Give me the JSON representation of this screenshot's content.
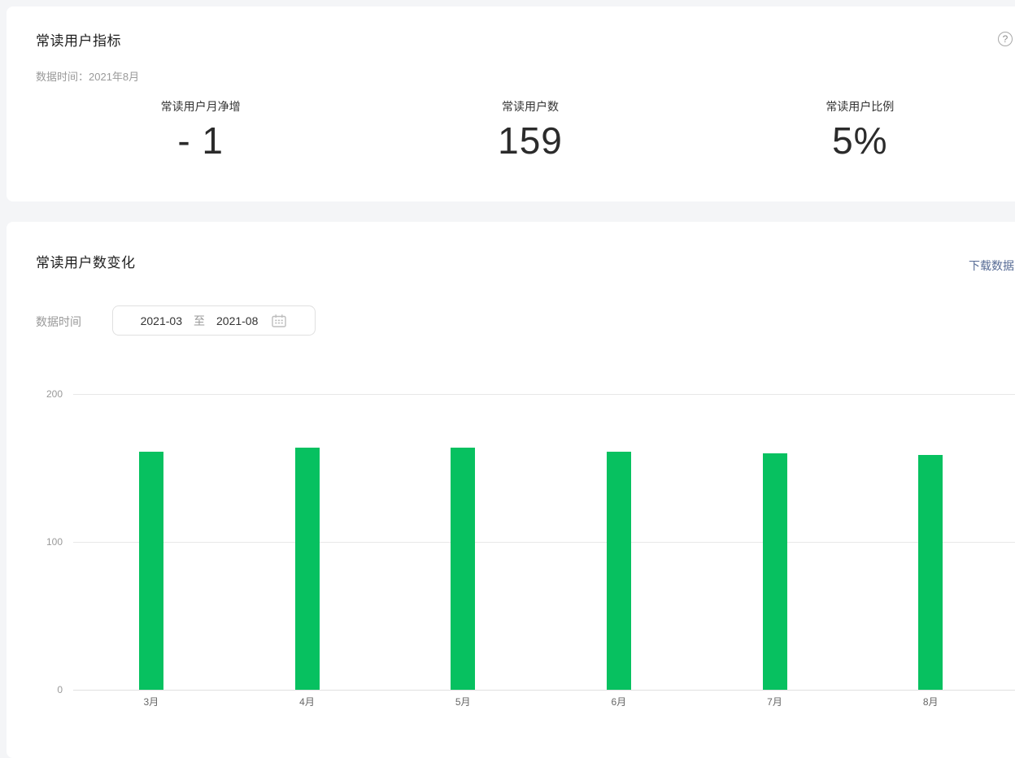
{
  "metrics_card": {
    "title": "常读用户指标",
    "help_glyph": "?",
    "data_time_label": "数据时间：",
    "data_time_value": "2021年8月",
    "metrics": [
      {
        "label": "常读用户月净增",
        "value": "- 1"
      },
      {
        "label": "常读用户数",
        "value": "159"
      },
      {
        "label": "常读用户比例",
        "value": "5%"
      }
    ]
  },
  "chart_card": {
    "title": "常读用户数变化",
    "download_label": "下载数据",
    "date_filter": {
      "label": "数据时间",
      "start_value": "2021-03",
      "separator": "至",
      "end_value": "2021-08",
      "icon": "calendar-icon"
    }
  },
  "chart_data": {
    "type": "bar",
    "title": "常读用户数变化",
    "categories": [
      "3月",
      "4月",
      "5月",
      "6月",
      "7月",
      "8月"
    ],
    "values": [
      161,
      164,
      164,
      161,
      160,
      159
    ],
    "xlabel": "",
    "ylabel": "",
    "ylim": [
      0,
      200
    ],
    "yticks": [
      0,
      100,
      200
    ],
    "grid": true,
    "legend_position": "none",
    "bar_color": "#07C160"
  },
  "colors": {
    "accent_green": "#07C160",
    "link_blue": "#576b95",
    "page_bg": "#f4f5f7",
    "card_bg": "#ffffff",
    "muted_text": "#9a9a9a",
    "dark_text": "#2b2b2b",
    "gridline": "#e8e8e8"
  }
}
